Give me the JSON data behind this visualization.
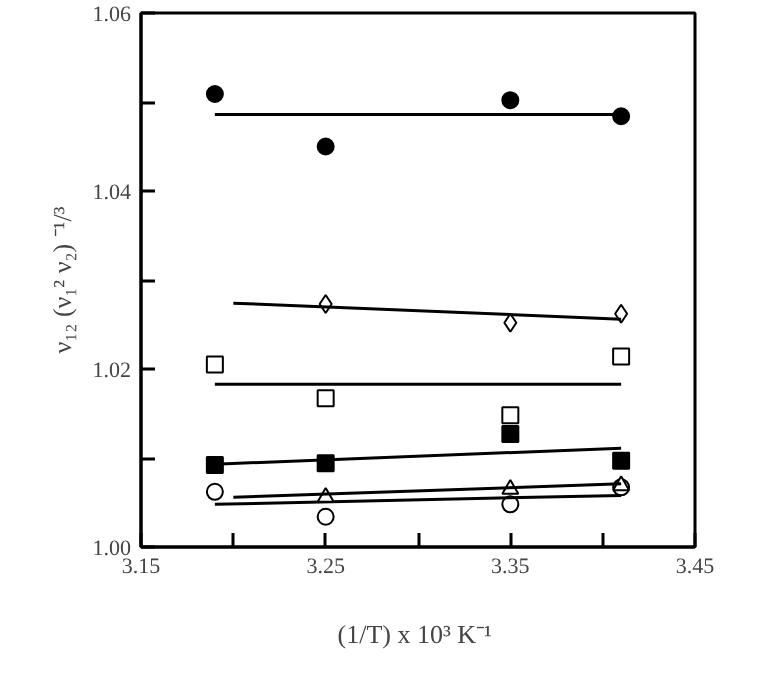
{
  "chart_data": {
    "type": "scatter",
    "xlabel": "(1/T) x 10³  K⁻¹",
    "ylabel": "ν₁₂ (ν₁² ν₂) ⁻¹/³",
    "xlim": [
      3.15,
      3.45
    ],
    "ylim": [
      1.0,
      1.06
    ],
    "xticks": [
      3.15,
      {
        "value": 3.2,
        "label": null
      },
      3.25,
      {
        "value": 3.3,
        "label": null
      },
      3.35,
      {
        "value": 3.4,
        "label": null
      },
      3.45
    ],
    "yticks": [
      {
        "value": 1.0,
        "label": "1.00"
      },
      {
        "value": 1.01,
        "label": null
      },
      1.02,
      {
        "value": 1.03,
        "label": null
      },
      1.04,
      {
        "value": 1.05,
        "label": null
      },
      1.06
    ],
    "grid": false,
    "series": [
      {
        "marker": "circle",
        "color": "#000000",
        "x": [
          3.19,
          3.25,
          3.35,
          3.41
        ],
        "values": [
          1.0509,
          1.045,
          1.0502,
          1.0484
        ]
      },
      {
        "type": "line",
        "color": "#000000",
        "x": [
          3.19,
          3.41
        ],
        "values": [
          1.0486,
          1.0486
        ]
      },
      {
        "marker": "diamond",
        "color": "#ffffff",
        "x": [
          3.25,
          3.35,
          3.41
        ],
        "values": [
          1.0273,
          1.0252,
          1.0262
        ]
      },
      {
        "type": "line",
        "color": "#000000",
        "x": [
          3.2,
          3.41
        ],
        "values": [
          1.0274,
          1.0256
        ]
      },
      {
        "marker": "square",
        "color": "#ffffff",
        "x": [
          3.19,
          3.25,
          3.35,
          3.41
        ],
        "values": [
          1.0205,
          1.0167,
          1.0148,
          1.0214
        ]
      },
      {
        "type": "line",
        "color": "#000000",
        "x": [
          3.19,
          3.41
        ],
        "values": [
          1.0183,
          1.0183
        ]
      },
      {
        "marker": "square",
        "color": "#000000",
        "x": [
          3.19,
          3.25,
          3.35,
          3.41
        ],
        "values": [
          1.0092,
          1.0094,
          1.0127,
          1.0097
        ]
      },
      {
        "type": "line",
        "color": "#000000",
        "x": [
          3.19,
          3.41
        ],
        "values": [
          1.0093,
          1.0111
        ]
      },
      {
        "marker": "circle",
        "color": "#ffffff",
        "x": [
          3.19,
          3.25,
          3.35,
          3.41
        ],
        "values": [
          1.0062,
          1.0034,
          1.0048,
          1.0067
        ]
      },
      {
        "type": "line",
        "color": "#000000",
        "x": [
          3.19,
          3.41
        ],
        "values": [
          1.0048,
          1.0058
        ]
      },
      {
        "marker": "triangle",
        "color": "#ffffff",
        "x": [
          3.25,
          3.35,
          3.41
        ],
        "values": [
          1.0056,
          1.0065,
          1.0069
        ]
      },
      {
        "type": "line",
        "color": "#000000",
        "x": [
          3.2,
          3.41
        ],
        "values": [
          1.0056,
          1.0071
        ]
      }
    ]
  }
}
